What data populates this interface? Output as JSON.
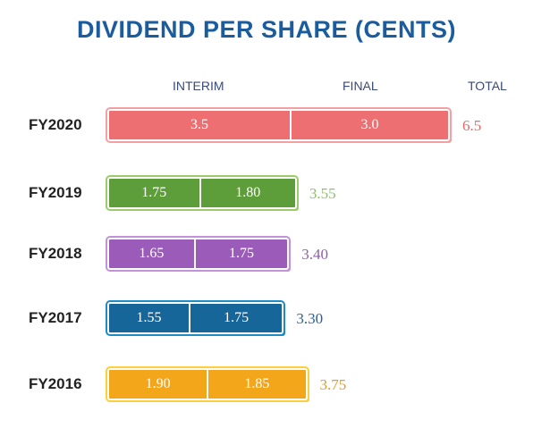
{
  "chart_data": {
    "type": "bar",
    "stacked": true,
    "orientation": "horizontal",
    "title": "DIVIDEND PER SHARE (CENTS)",
    "column_headers": [
      "INTERIM",
      "FINAL",
      "TOTAL"
    ],
    "categories": [
      "FY2020",
      "FY2019",
      "FY2018",
      "FY2017",
      "FY2016"
    ],
    "series": [
      {
        "name": "INTERIM",
        "values": [
          3.5,
          1.75,
          1.65,
          1.55,
          1.9
        ],
        "labels": [
          "3.5",
          "1.75",
          "1.65",
          "1.55",
          "1.90"
        ]
      },
      {
        "name": "FINAL",
        "values": [
          3.0,
          1.8,
          1.75,
          1.75,
          1.85
        ],
        "labels": [
          "3.0",
          "1.80",
          "1.75",
          "1.75",
          "1.85"
        ]
      }
    ],
    "totals": [
      "6.5",
      "3.55",
      "3.40",
      "3.30",
      "3.75"
    ],
    "colors": {
      "FY2020": {
        "fill": "#ee6f72",
        "edge": "#f4a0a2",
        "text": "#e9686a"
      },
      "FY2019": {
        "fill": "#5e9e3a",
        "edge": "#9acd6a",
        "text": "#8dbf6a"
      },
      "FY2018": {
        "fill": "#9a5cb8",
        "edge": "#c291da",
        "text": "#8e5fb0"
      },
      "FY2017": {
        "fill": "#17669a",
        "edge": "#1d8bc4",
        "text": "#2b5f92"
      },
      "FY2016": {
        "fill": "#f3a61a",
        "edge": "#ffcf3a",
        "text": "#e59a2a"
      }
    },
    "grid": false,
    "legend": "column headers at top"
  }
}
